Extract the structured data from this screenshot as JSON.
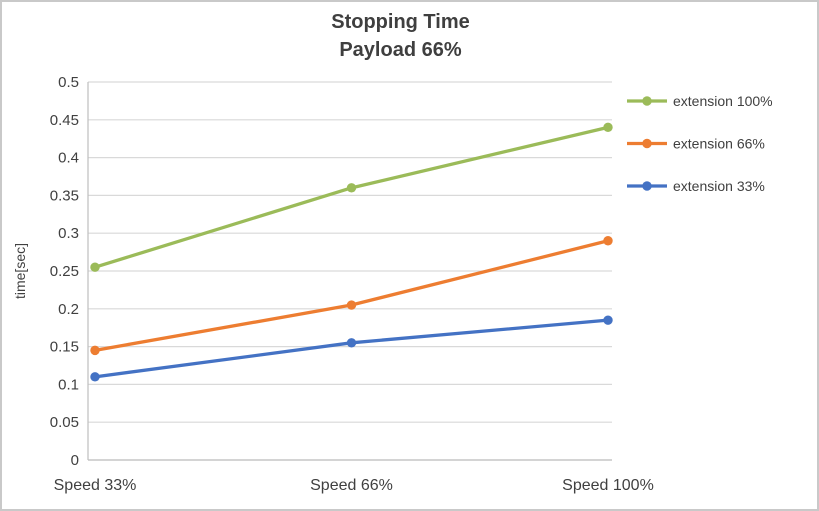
{
  "chart_data": {
    "type": "line",
    "title": "Stopping Time",
    "subtitle": "Payload 66%",
    "xlabel": "",
    "ylabel": "time[sec]",
    "categories": [
      "Speed 33%",
      "Speed 66%",
      "Speed 100%"
    ],
    "series": [
      {
        "name": "extension 100%",
        "color": "#9BBB59",
        "values": [
          0.255,
          0.36,
          0.44
        ]
      },
      {
        "name": "extension 66%",
        "color": "#ED7D31",
        "values": [
          0.145,
          0.205,
          0.29
        ]
      },
      {
        "name": "extension 33%",
        "color": "#4472C4",
        "values": [
          0.11,
          0.155,
          0.185
        ]
      }
    ],
    "ylim": [
      0,
      0.5
    ],
    "ytick_step": 0.05,
    "ytick_labels": [
      "0",
      "0.05",
      "0.1",
      "0.15",
      "0.2",
      "0.25",
      "0.3",
      "0.35",
      "0.4",
      "0.45",
      "0.5"
    ],
    "grid": true,
    "legend_position": "right"
  },
  "colors": {
    "grid": "#D9D9D9",
    "axis": "#BFBFBF",
    "text": "#404040",
    "border": "#C9C9C9",
    "background": "#FFFFFF"
  }
}
